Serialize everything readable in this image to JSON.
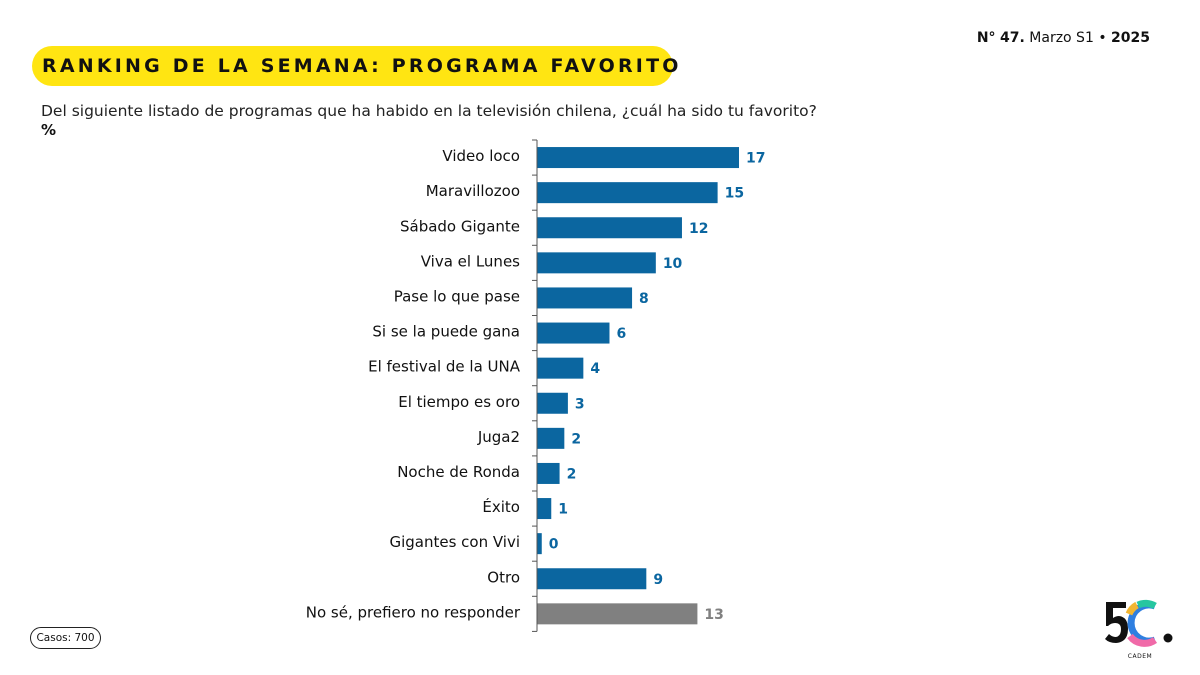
{
  "header": {
    "edition_prefix": "N°",
    "edition_number": "47.",
    "edition_month": "Marzo S1",
    "edition_separator": "•",
    "edition_year": "2025",
    "title": "RANKING DE LA SEMANA: PROGRAMA FAVORITO",
    "question": "Del siguiente listado de programas que ha habido en la televisión chilena, ¿cuál ha sido tu favorito?",
    "unit": "%"
  },
  "footer": {
    "cases": "Casos: 700"
  },
  "logo": {
    "text": "5C",
    "caption": "CADEM"
  },
  "colors": {
    "accent_yellow": "#ffe512",
    "bar_blue": "#0b66a0",
    "bar_gray": "#808080"
  },
  "chart_data": {
    "type": "bar",
    "orientation": "horizontal",
    "categories": [
      "Video loco",
      "Maravillozoo",
      "Sábado Gigante",
      "Viva el Lunes",
      "Pase lo que pase",
      "Si se la puede gana",
      "El festival de la UNA",
      "El tiempo es oro",
      "Juga2",
      "Noche de Ronda",
      "Éxito",
      "Gigantes con Vivi",
      "Otro",
      "No sé, prefiero no responder"
    ],
    "values": [
      17,
      15,
      12,
      10,
      8,
      6,
      4,
      3,
      2,
      2,
      1,
      0,
      9,
      13
    ],
    "bar_values": [
      17,
      15.2,
      12.2,
      10,
      8,
      6.1,
      3.9,
      2.6,
      2.3,
      1.9,
      1.2,
      0.4,
      9.2,
      13.5
    ],
    "data_labels": [
      "17",
      "15",
      "12",
      "10",
      "8",
      "6",
      "4",
      "3",
      "2",
      "2",
      "1",
      "0",
      "9",
      "13"
    ],
    "highlight_gray": [
      "No sé, prefiero no responder"
    ],
    "title": "",
    "xlabel": "",
    "ylabel": "",
    "xlim": [
      0,
      17
    ],
    "grid": false,
    "legend": "none"
  }
}
